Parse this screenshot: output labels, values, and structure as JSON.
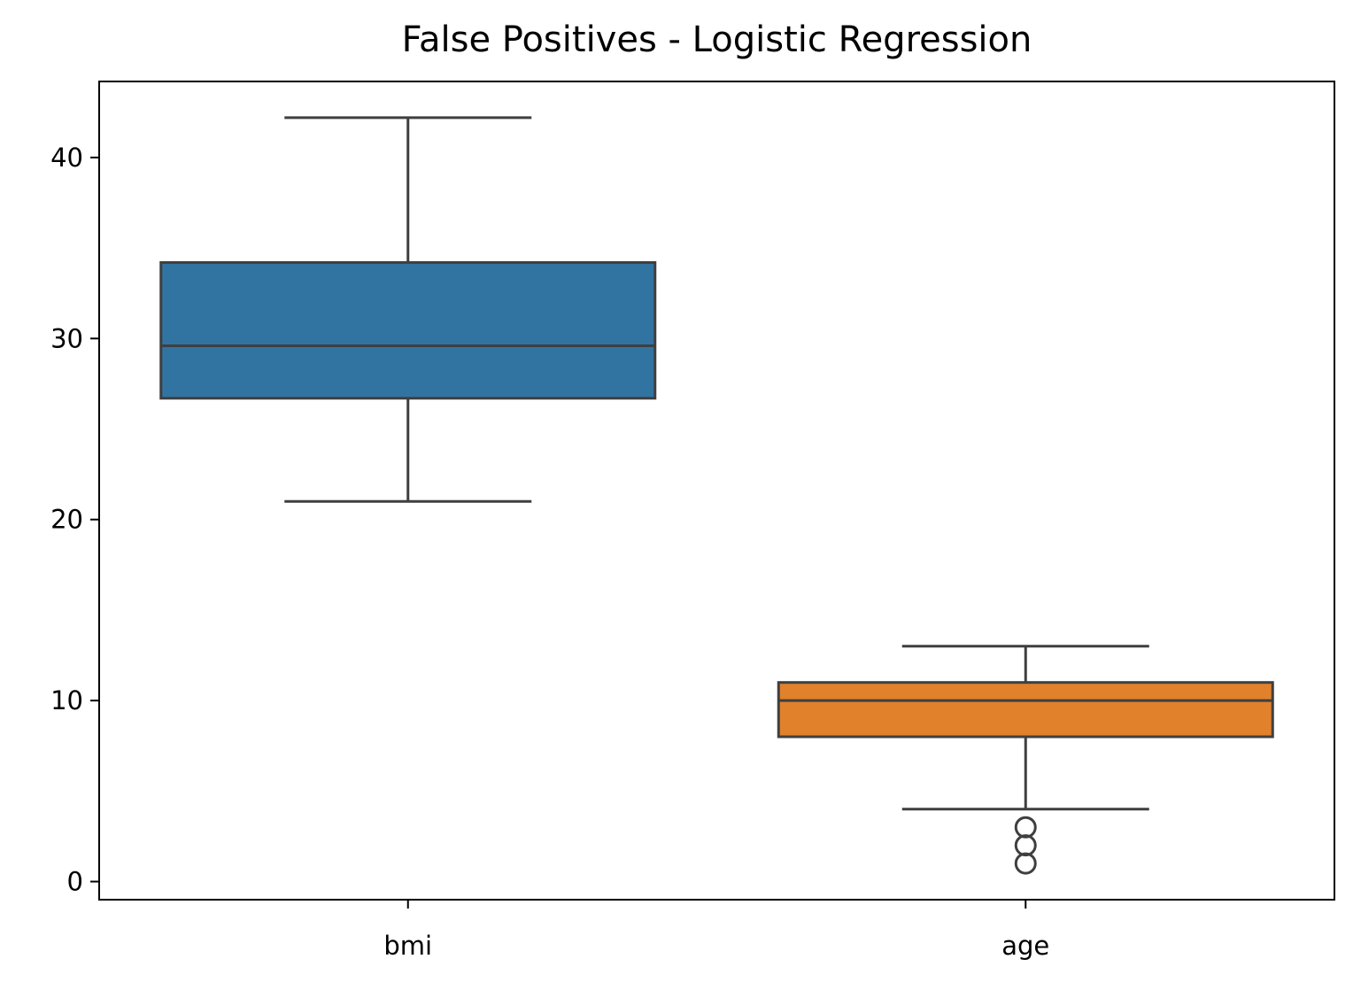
{
  "chart_data": {
    "type": "box",
    "title": "False Positives - Logistic Regression",
    "xlabel": "",
    "ylabel": "",
    "categories": [
      "bmi",
      "age"
    ],
    "ylim": [
      -1.0,
      44.2
    ],
    "yticks": [
      0,
      10,
      20,
      30,
      40
    ],
    "ytick_labels": [
      "0",
      "10",
      "20",
      "30",
      "40"
    ],
    "grid": false,
    "series": [
      {
        "category": "bmi",
        "whisker_low": 21.0,
        "q1": 26.7,
        "median": 29.6,
        "q3": 34.2,
        "whisker_high": 42.2,
        "outliers": [],
        "color": "#3274a1"
      },
      {
        "category": "age",
        "whisker_low": 4.0,
        "q1": 8.0,
        "median": 10.0,
        "q3": 11.0,
        "whisker_high": 13.0,
        "outliers": [
          3.0,
          2.0,
          1.0
        ],
        "color": "#e1812c"
      }
    ],
    "line_color": "#3f3f3f"
  }
}
